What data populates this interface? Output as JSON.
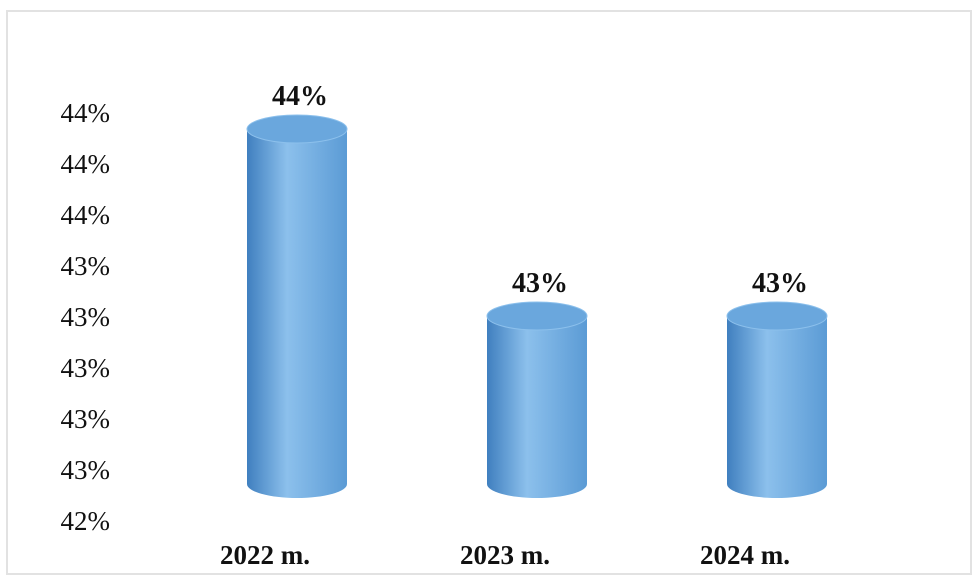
{
  "chart_data": {
    "type": "bar",
    "style": "cylinder-3d",
    "categories": [
      "2022 m.",
      "2023 m.",
      "2024 m."
    ],
    "values": [
      44.3,
      43.2,
      43.2
    ],
    "data_labels": [
      "44%",
      "43%",
      "43%"
    ],
    "y_tick_labels": [
      "42%",
      "43%",
      "43%",
      "43%",
      "43%",
      "43%",
      "44%",
      "44%",
      "44%"
    ],
    "ylim": [
      42.0,
      44.4
    ],
    "title": "",
    "xlabel": "",
    "ylabel": "",
    "grid": false,
    "legend": "none",
    "colors": {
      "bar": "#5b9bd5",
      "bar_light": "#8cc0ec",
      "bar_dark": "#3f7fbf",
      "bar_top": "#6aa7dd"
    }
  }
}
